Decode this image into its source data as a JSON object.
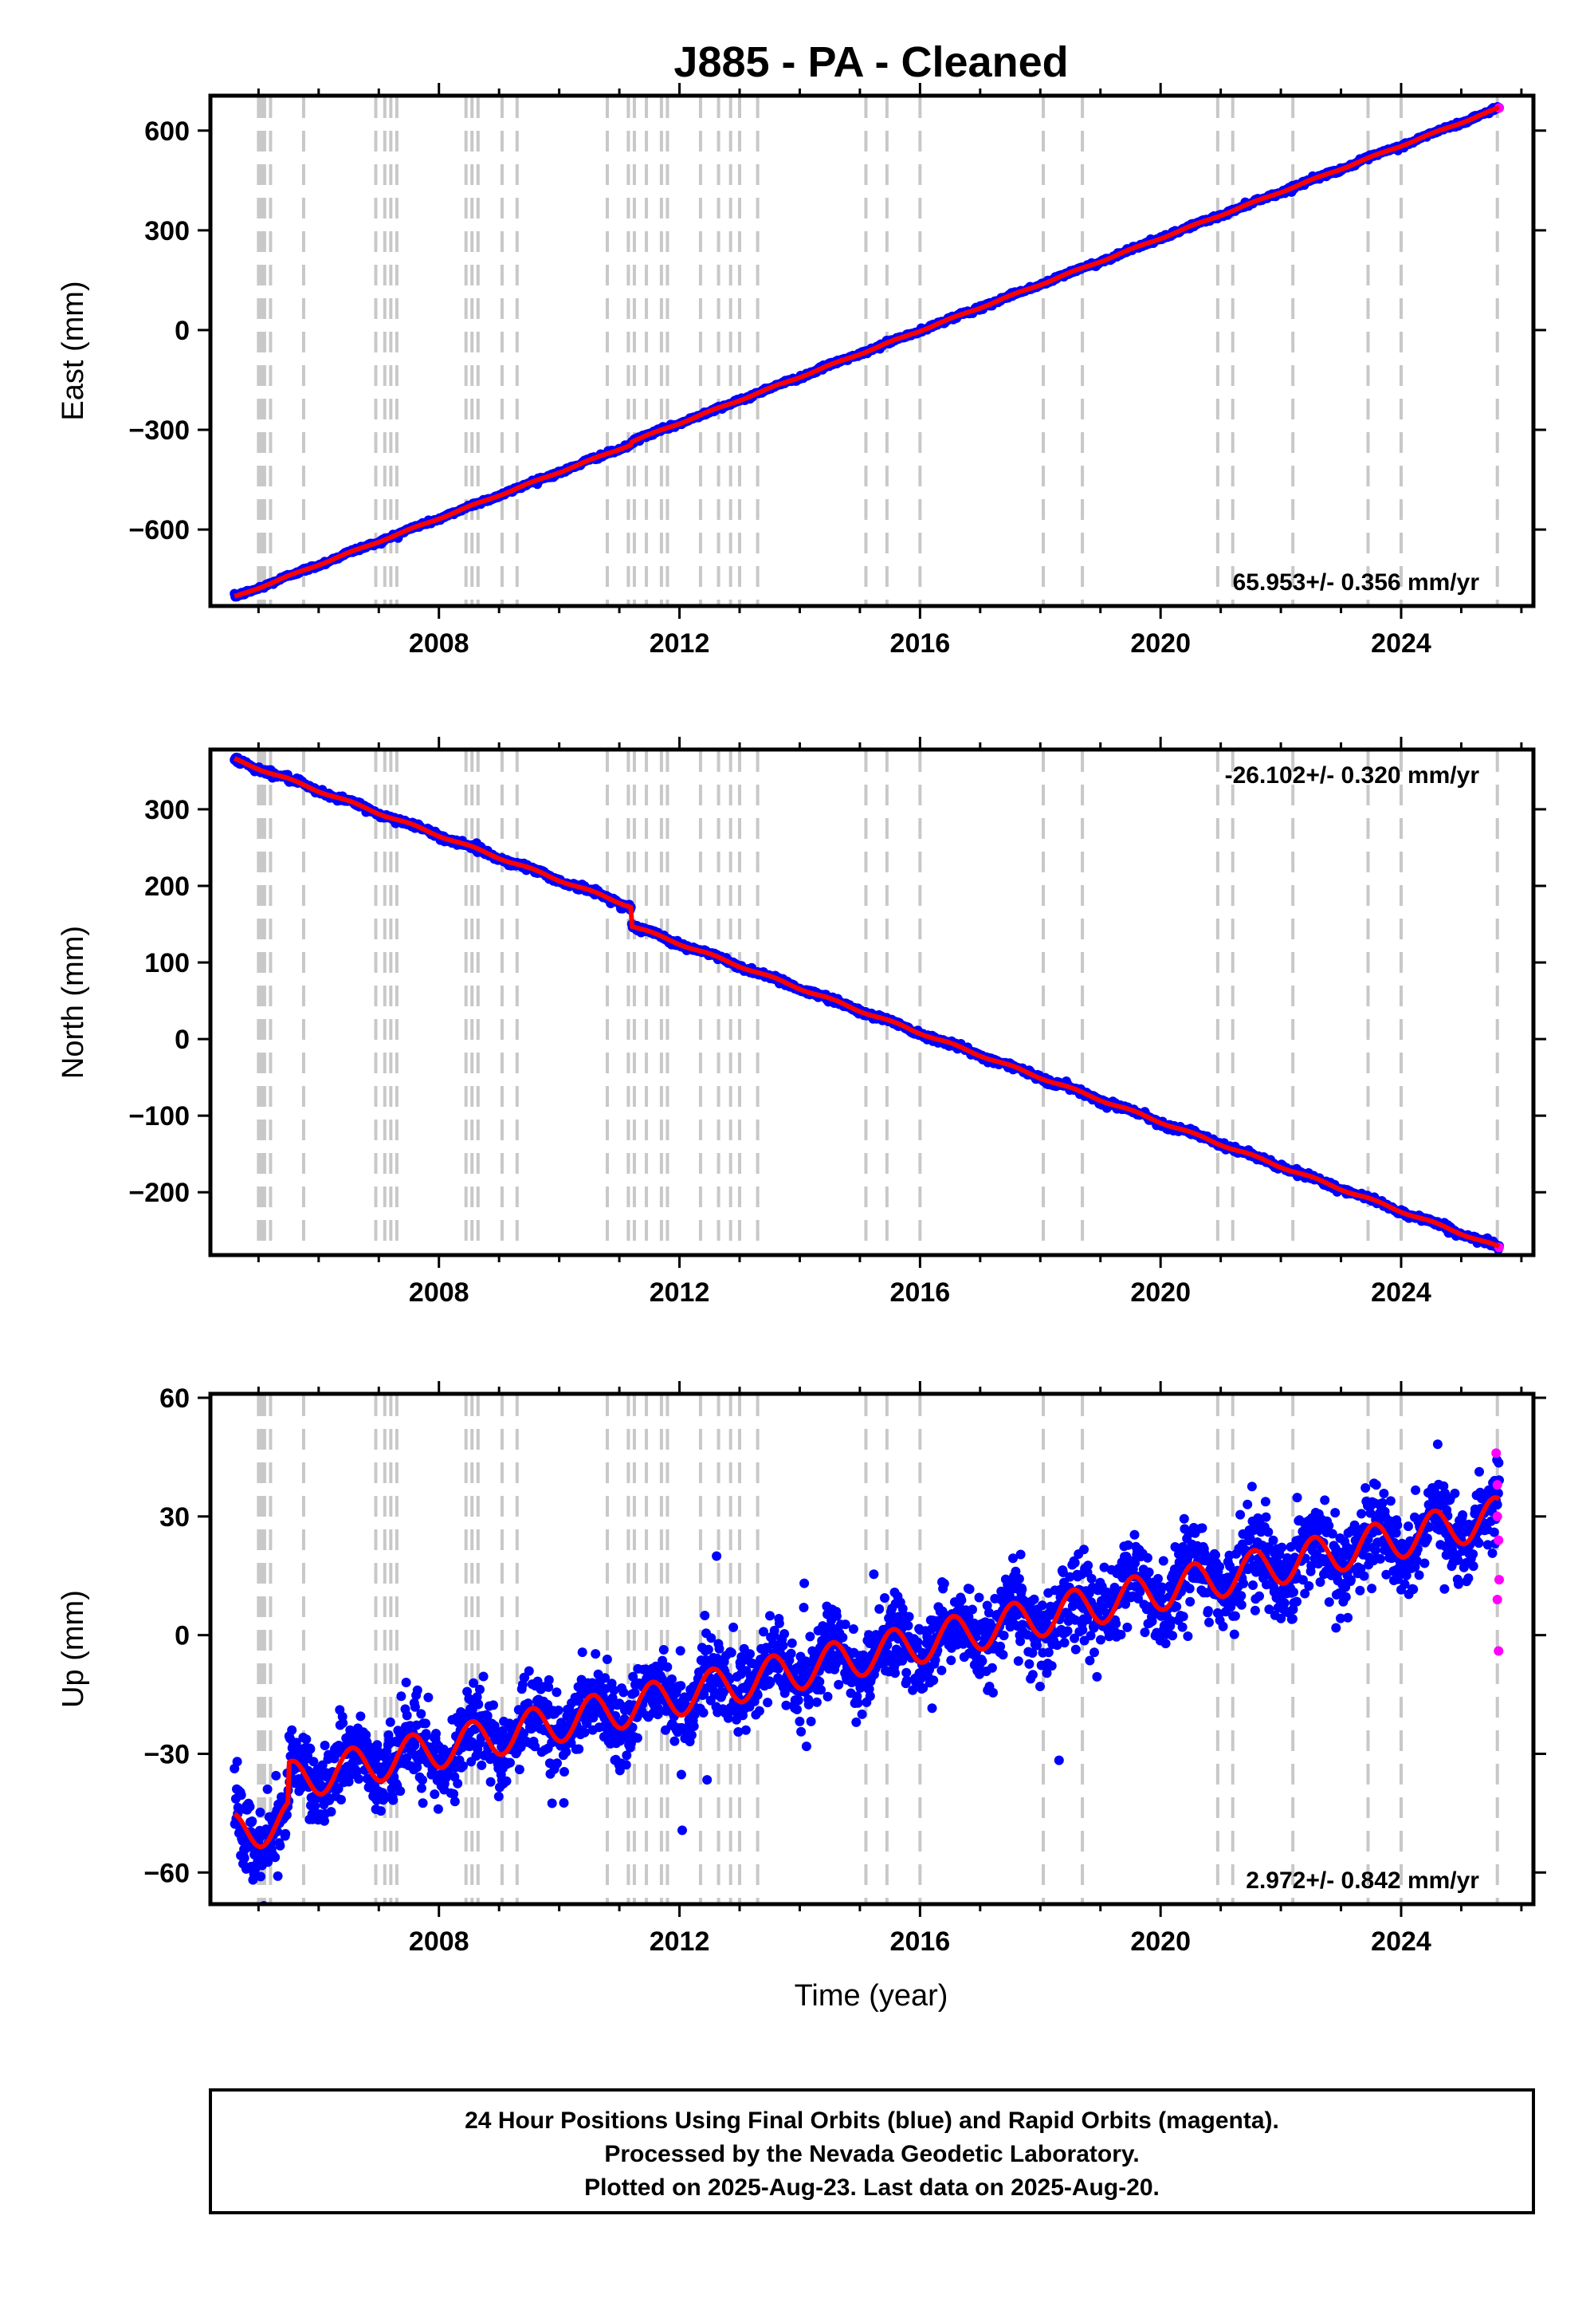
{
  "title": "J885  - PA - Cleaned",
  "colors": {
    "final_points": "#0000ff",
    "rapid_points": "#ff00ff",
    "model_line": "#ff0000",
    "event_lines": "#c8c8c8"
  },
  "xlabel": "Time (year)",
  "footer": {
    "line1": "24 Hour Positions Using Final Orbits (blue) and Rapid Orbits (magenta).",
    "line2": "Processed by the Nevada Geodetic Laboratory.",
    "line3": "Plotted on 2025-Aug-23. Last data on 2025-Aug-20."
  },
  "chart_data": [
    {
      "type": "scatter",
      "component": "east",
      "ylabel": "East (mm)",
      "xlim": [
        2004.2,
        2026.2
      ],
      "ylim": [
        -830,
        705
      ],
      "xticks": [
        2008,
        2012,
        2016,
        2020,
        2024
      ],
      "yticks": [
        -600,
        -300,
        0,
        300,
        600
      ],
      "rate_text": "65.953+/- 0.356 mm/yr",
      "rate_position": "bottom-right",
      "start": {
        "x": 2004.6,
        "y": -803
      },
      "end": {
        "x": 2025.63,
        "y": 668
      },
      "rate_mm_per_yr": 65.953,
      "seasonal_amplitude_mm": 2,
      "steps": [
        {
          "x": 2011.2,
          "dy": 8
        }
      ],
      "noise_mm": 3,
      "point_count": 1500
    },
    {
      "type": "scatter",
      "component": "north",
      "ylabel": "North (mm)",
      "xlim": [
        2004.2,
        2026.2
      ],
      "ylim": [
        -282,
        378
      ],
      "xticks": [
        2008,
        2012,
        2016,
        2020,
        2024
      ],
      "yticks": [
        -200,
        -100,
        0,
        100,
        200,
        300
      ],
      "rate_text": "-26.102+/- 0.320 mm/yr",
      "rate_position": "top-right",
      "start": {
        "x": 2004.6,
        "y": 365
      },
      "end": {
        "x": 2025.63,
        "y": -272
      },
      "rate_mm_per_yr": -26.102,
      "seasonal_amplitude_mm": 1.5,
      "steps": [
        {
          "x": 2011.2,
          "dy": -25
        }
      ],
      "noise_mm": 2,
      "point_count": 1500
    },
    {
      "type": "scatter",
      "component": "up",
      "ylabel": "Up (mm)",
      "xlim": [
        2004.2,
        2026.2
      ],
      "ylim": [
        -68,
        61
      ],
      "xticks": [
        2008,
        2012,
        2016,
        2020,
        2024
      ],
      "yticks": [
        -60,
        -30,
        0,
        30,
        60
      ],
      "rate_text": "2.972+/- 0.842 mm/yr",
      "rate_position": "bottom-right",
      "start": {
        "x": 2004.6,
        "y": -50
      },
      "end": {
        "x": 2025.63,
        "y": 30
      },
      "rate_mm_per_yr": 2.972,
      "seasonal_amplitude_mm": 5,
      "steps": [
        {
          "x": 2005.5,
          "dy": 10
        }
      ],
      "noise_mm": 5,
      "point_count": 2800,
      "rapid_points": [
        {
          "x": 2025.58,
          "y": 46
        },
        {
          "x": 2025.6,
          "y": 38
        },
        {
          "x": 2025.6,
          "y": 30
        },
        {
          "x": 2025.62,
          "y": 24
        },
        {
          "x": 2025.63,
          "y": 14
        },
        {
          "x": 2025.6,
          "y": 9
        },
        {
          "x": 2025.62,
          "y": -4
        }
      ]
    }
  ],
  "event_line_years": [
    2005.0,
    2005.05,
    2005.1,
    2005.2,
    2005.75,
    2006.95,
    2007.1,
    2007.2,
    2007.3,
    2008.45,
    2008.55,
    2008.65,
    2009.05,
    2009.3,
    2010.8,
    2011.15,
    2011.25,
    2011.45,
    2011.7,
    2011.8,
    2012.35,
    2012.65,
    2012.85,
    2013.0,
    2013.3,
    2015.1,
    2015.45,
    2016.0,
    2018.05,
    2018.7,
    2020.95,
    2021.2,
    2022.2,
    2023.45,
    2024.0,
    2025.6
  ]
}
